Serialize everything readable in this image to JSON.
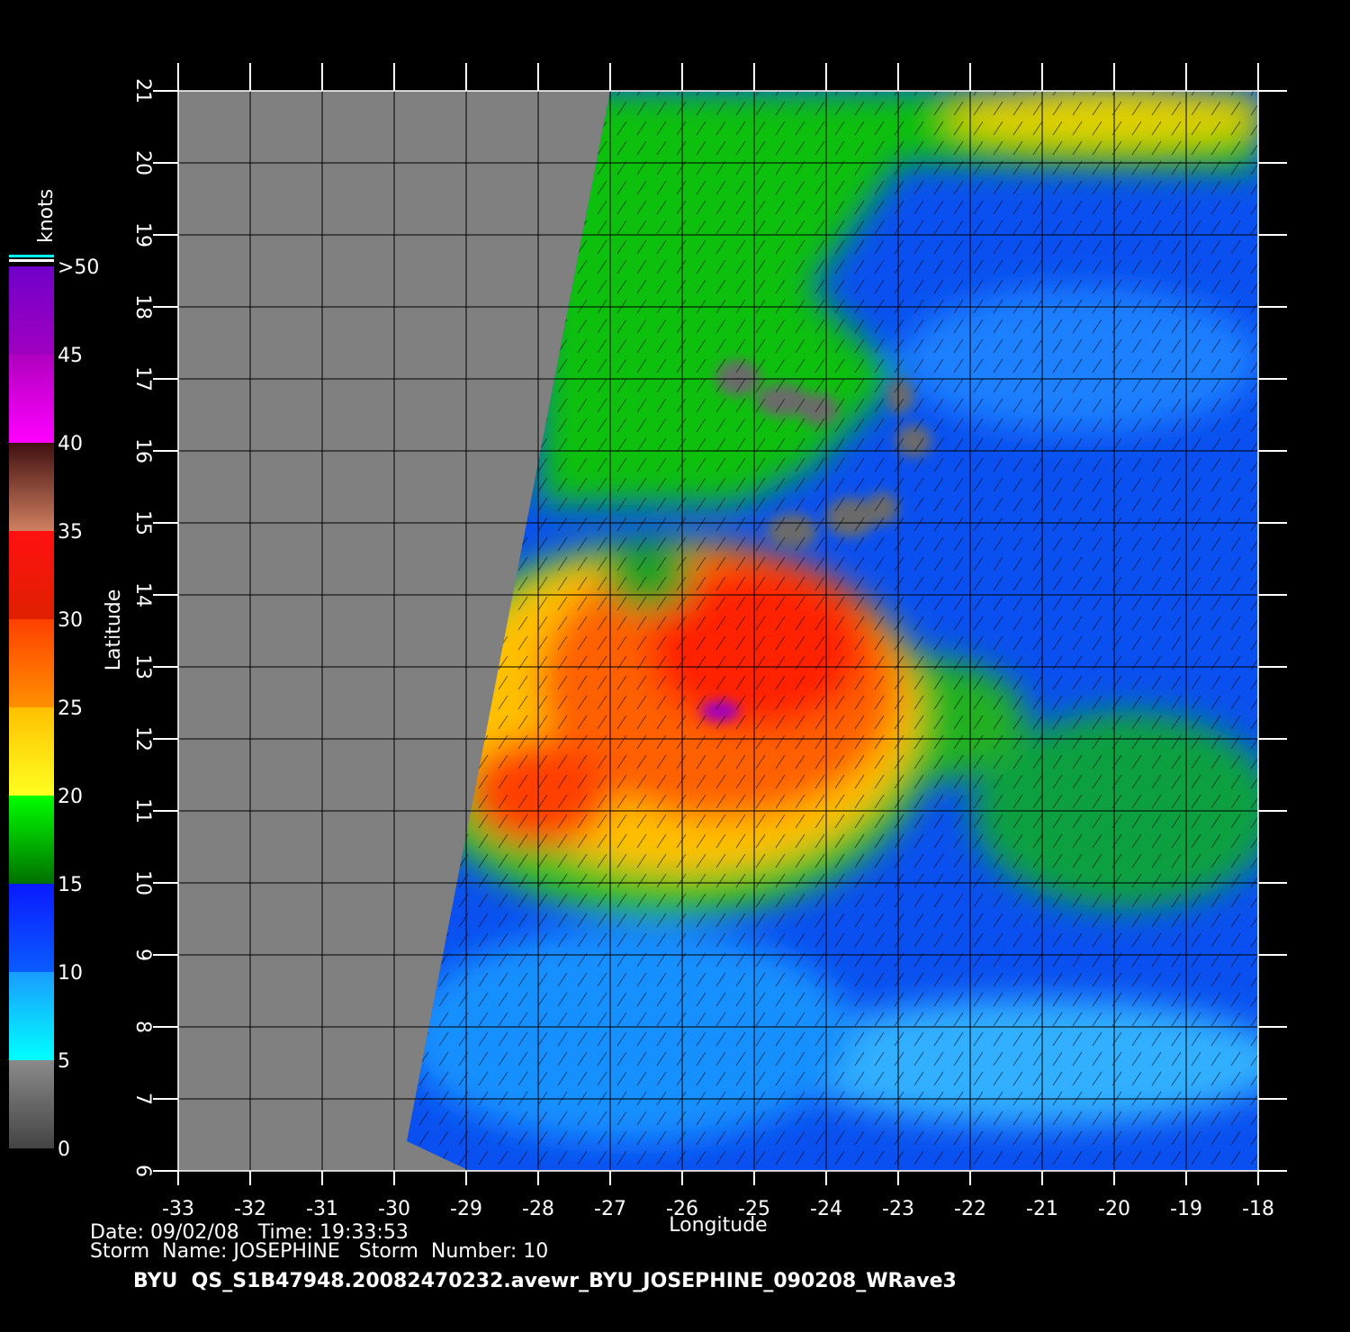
{
  "map": {
    "title": "BYU  QS_S1B47948.20082470232.avewr_BYU_JOSEPHINE_090208_WRave3",
    "date_line": "Date: 09/02/08   Time: 19:33:53",
    "storm_line": "Storm  Name: JOSEPHINE   Storm  Number: 10",
    "x_label": "Longitude",
    "y_label": "Latitude",
    "xlim": [
      -33,
      -18
    ],
    "ylim": [
      6,
      21
    ],
    "xticks": [
      -33,
      -32,
      -31,
      -30,
      -29,
      -28,
      -27,
      -26,
      -25,
      -24,
      -23,
      -22,
      -21,
      -20,
      -19,
      -18
    ],
    "yticks": [
      6,
      7,
      8,
      9,
      10,
      11,
      12,
      13,
      14,
      15,
      16,
      17,
      18,
      19,
      20,
      21
    ],
    "grid": true,
    "colorbar": {
      "label": "knots",
      "lim": [
        0,
        50
      ],
      "ticks": [
        0,
        5,
        10,
        15,
        20,
        25,
        30,
        35,
        40,
        45,
        {
          "value": 50,
          "label": ">50"
        }
      ],
      "colors": [
        [
          "#444444",
          "#8a8a8a"
        ],
        [
          "#00ffff",
          "#1a9cff"
        ],
        [
          "#0a5cff",
          "#0a1aff"
        ],
        [
          "#007000",
          "#00ff00"
        ],
        [
          "#ffff20",
          "#ffc000"
        ],
        [
          "#ff9000",
          "#ff4000"
        ],
        [
          "#e02000",
          "#ff1010"
        ],
        [
          "#d08060",
          "#401010"
        ],
        [
          "#ff00ff",
          "#b000c0"
        ],
        [
          "#a000c0",
          "#7000c8"
        ]
      ]
    }
  }
}
